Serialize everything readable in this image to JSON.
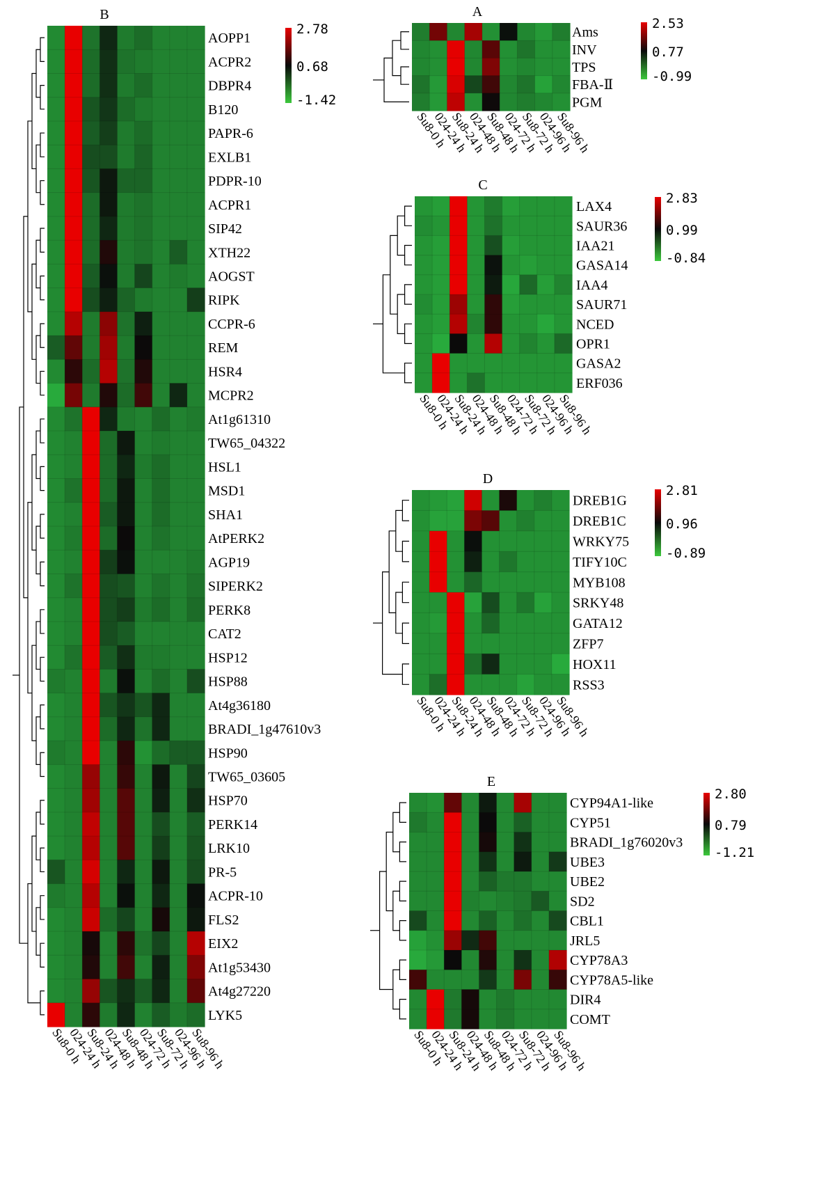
{
  "columns": [
    "Su8-0 h",
    "024-24 h",
    "Su8-24 h",
    "024-48 h",
    "Su8-48 h",
    "024-72 h",
    "Su8-72 h",
    "024-96 h",
    "Su8-96 h"
  ],
  "chart_data": [
    {
      "type": "heatmap",
      "title": "B",
      "legend": {
        "ticks": [
          "2.78",
          "0.68",
          "-1.42"
        ],
        "range": [
          -1.42,
          2.78
        ]
      },
      "rows": [
        "AOPP1",
        "ACPR2",
        "DBPR4",
        "B120",
        "PAPR-6",
        "EXLB1",
        "PDPR-10",
        "ACPR1",
        "SIP42",
        "XTH22",
        "AOGST",
        "RIPK",
        "CCPR-6",
        "REM",
        "HSR4",
        "MCPR2",
        "At1g61310",
        "TW65_04322",
        "HSL1",
        "MSD1",
        "SHA1",
        "AtPERK2",
        "AGP19",
        "SIPERK2",
        "PERK8",
        "CAT2",
        "HSP12",
        "HSP88",
        "At4g36180",
        "BRADI_1g47610v3",
        "HSP90",
        "TW65_03605",
        "HSP70",
        "PERK14",
        "LRK10",
        "PR-5",
        "ACPR-10",
        "FLS2",
        "EIX2",
        "At1g53430",
        "At4g27220",
        "LYK5"
      ],
      "values": [
        [
          -1.0,
          2.78,
          -0.7,
          0.3,
          -0.8,
          -0.6,
          -0.9,
          -0.9,
          -0.9
        ],
        [
          -1.0,
          2.78,
          -0.6,
          0.2,
          -0.7,
          -0.8,
          -0.9,
          -0.9,
          -0.9
        ],
        [
          -1.0,
          2.78,
          -0.6,
          0.2,
          -0.8,
          -0.6,
          -0.9,
          -0.9,
          -0.9
        ],
        [
          -1.0,
          2.78,
          -0.3,
          0.1,
          -0.6,
          -0.8,
          -0.9,
          -0.9,
          -0.9
        ],
        [
          -1.0,
          2.78,
          -0.4,
          0.0,
          -0.8,
          -0.6,
          -0.9,
          -0.9,
          -0.9
        ],
        [
          -1.0,
          2.78,
          -0.2,
          -0.2,
          -0.8,
          -0.5,
          -0.9,
          -0.9,
          -0.9
        ],
        [
          -1.0,
          2.78,
          -0.3,
          0.5,
          -0.5,
          -0.5,
          -0.9,
          -0.9,
          -0.9
        ],
        [
          -1.0,
          2.78,
          -0.6,
          0.5,
          -0.8,
          -0.7,
          -0.9,
          -0.9,
          -0.9
        ],
        [
          -1.0,
          2.78,
          -0.6,
          0.3,
          -0.8,
          -0.7,
          -0.9,
          -0.9,
          -0.9
        ],
        [
          -1.0,
          2.78,
          -0.6,
          0.9,
          -0.8,
          -0.7,
          -0.9,
          -0.4,
          -0.9
        ],
        [
          -1.0,
          2.78,
          -0.4,
          0.6,
          -0.8,
          -0.1,
          -0.9,
          -0.8,
          -0.9
        ],
        [
          -1.0,
          2.78,
          -0.2,
          0.4,
          -0.5,
          -0.8,
          -0.9,
          -0.9,
          0.0
        ],
        [
          -1.0,
          2.3,
          -0.8,
          1.9,
          -0.7,
          0.4,
          -0.9,
          -0.9,
          -0.9
        ],
        [
          -0.4,
          1.5,
          -0.8,
          2.1,
          -0.8,
          0.7,
          -0.9,
          -0.9,
          -0.9
        ],
        [
          -1.0,
          1.0,
          -0.6,
          2.3,
          -0.7,
          0.9,
          -0.9,
          -0.9,
          -0.9
        ],
        [
          -1.42,
          1.7,
          -0.8,
          0.9,
          -0.6,
          1.2,
          -0.9,
          0.3,
          -0.9
        ],
        [
          -1.0,
          -0.7,
          2.78,
          0.3,
          -0.8,
          -0.9,
          -0.6,
          -0.9,
          -0.8
        ],
        [
          -1.0,
          -0.9,
          2.78,
          -0.6,
          0.5,
          -0.9,
          -0.8,
          -0.9,
          -0.9
        ],
        [
          -1.0,
          -0.9,
          2.78,
          -0.6,
          0.3,
          -0.8,
          -0.6,
          -0.9,
          -0.9
        ],
        [
          -1.0,
          -0.7,
          2.78,
          -0.6,
          0.5,
          -0.9,
          -0.6,
          -0.9,
          -0.9
        ],
        [
          -1.0,
          -0.9,
          2.78,
          -0.4,
          0.5,
          -0.9,
          -0.6,
          -0.9,
          -0.9
        ],
        [
          -1.0,
          -0.8,
          2.78,
          -0.6,
          0.7,
          -0.9,
          -0.7,
          -0.9,
          -0.9
        ],
        [
          -1.0,
          -0.9,
          2.78,
          0.0,
          0.6,
          -0.9,
          -0.9,
          -0.9,
          -0.8
        ],
        [
          -1.0,
          -0.7,
          2.78,
          -0.2,
          -0.3,
          -0.9,
          -0.7,
          -0.9,
          -0.7
        ],
        [
          -1.0,
          -0.9,
          2.78,
          -0.2,
          0.0,
          -0.8,
          -0.6,
          -0.9,
          -0.6
        ],
        [
          -1.0,
          -0.9,
          2.78,
          -0.2,
          -0.4,
          -0.9,
          -0.9,
          -0.9,
          -0.9
        ],
        [
          -1.0,
          -0.7,
          2.78,
          -0.4,
          0.2,
          -0.8,
          -0.8,
          -0.9,
          -0.9
        ],
        [
          -0.8,
          -0.9,
          2.78,
          -0.8,
          0.6,
          -0.9,
          -0.6,
          -0.9,
          -0.2
        ],
        [
          -1.0,
          -0.9,
          2.78,
          -0.3,
          0.1,
          -0.3,
          0.3,
          -0.9,
          -0.9
        ],
        [
          -1.0,
          -0.9,
          2.78,
          -0.6,
          0.3,
          -0.7,
          0.3,
          -0.9,
          -0.9
        ],
        [
          -0.8,
          -0.9,
          2.78,
          -0.9,
          1.0,
          -1.1,
          -0.6,
          -0.4,
          -0.4
        ],
        [
          -1.0,
          -0.9,
          2.0,
          -0.9,
          1.1,
          -0.9,
          0.5,
          -0.9,
          -0.1
        ],
        [
          -1.0,
          -0.9,
          2.1,
          -0.9,
          1.4,
          -0.9,
          0.4,
          -0.9,
          0.2
        ],
        [
          -1.0,
          -0.9,
          2.4,
          -0.9,
          1.4,
          -0.9,
          -0.2,
          -0.9,
          -0.4
        ],
        [
          -1.0,
          -0.9,
          2.3,
          -0.9,
          1.4,
          -0.9,
          0.0,
          -0.9,
          -0.3
        ],
        [
          -0.3,
          -0.9,
          2.6,
          -0.9,
          0.3,
          -0.9,
          0.5,
          -0.9,
          -0.2
        ],
        [
          -0.8,
          -0.9,
          2.3,
          -0.9,
          0.6,
          -0.9,
          0.3,
          -0.9,
          0.6
        ],
        [
          -1.0,
          -0.9,
          2.5,
          -0.6,
          -0.1,
          -0.9,
          0.8,
          -0.9,
          0.5
        ],
        [
          -1.0,
          -0.9,
          0.8,
          -0.9,
          1.0,
          -0.7,
          -0.1,
          -0.9,
          2.3
        ],
        [
          -1.0,
          -0.9,
          0.9,
          -0.9,
          1.2,
          -0.9,
          0.4,
          -0.9,
          1.8
        ],
        [
          -1.0,
          -0.9,
          2.0,
          -0.3,
          0.2,
          -0.4,
          0.3,
          -0.9,
          1.5
        ],
        [
          2.78,
          -0.9,
          1.0,
          -0.8,
          0.3,
          -0.9,
          -0.4,
          -0.8,
          -0.6
        ]
      ]
    },
    {
      "type": "heatmap",
      "title": "A",
      "legend": {
        "ticks": [
          "2.53",
          "0.77",
          "-0.99"
        ],
        "range": [
          -0.99,
          2.53
        ]
      },
      "rows": [
        "Ams",
        "INV",
        "TPS",
        "FBA-Ⅱ",
        "PGM"
      ],
      "values": [
        [
          -0.5,
          1.6,
          -0.6,
          2.0,
          -0.7,
          0.7,
          -0.6,
          -0.8,
          -0.5
        ],
        [
          -0.6,
          -0.7,
          2.5,
          -0.6,
          1.4,
          -0.7,
          -0.4,
          -0.7,
          -0.7
        ],
        [
          -0.6,
          -0.7,
          2.53,
          -0.6,
          1.7,
          -0.7,
          -0.6,
          -0.7,
          -0.7
        ],
        [
          -0.4,
          -0.8,
          2.4,
          0.1,
          1.2,
          -0.6,
          -0.4,
          -0.9,
          -0.6
        ],
        [
          -0.5,
          -0.8,
          2.2,
          -0.7,
          0.8,
          -0.6,
          -0.5,
          -0.6,
          -0.7
        ]
      ]
    },
    {
      "type": "heatmap",
      "title": "C",
      "legend": {
        "ticks": [
          "2.83",
          "0.99",
          "-0.84"
        ],
        "range": [
          -0.84,
          2.83
        ]
      },
      "rows": [
        "LAX4",
        "SAUR36",
        "IAA21",
        "GASA14",
        "IAA4",
        "SAUR71",
        "NCED",
        "OPR1",
        "GASA2",
        "ERF036"
      ],
      "values": [
        [
          -0.6,
          -0.7,
          2.83,
          -0.6,
          -0.3,
          -0.7,
          -0.6,
          -0.6,
          -0.6
        ],
        [
          -0.5,
          -0.6,
          2.83,
          -0.6,
          -0.2,
          -0.6,
          -0.6,
          -0.6,
          -0.6
        ],
        [
          -0.6,
          -0.7,
          2.83,
          -0.6,
          0.2,
          -0.7,
          -0.6,
          -0.6,
          -0.6
        ],
        [
          -0.6,
          -0.7,
          2.83,
          -0.6,
          0.9,
          -0.6,
          -0.7,
          -0.6,
          -0.6
        ],
        [
          -0.6,
          -0.7,
          2.83,
          -0.6,
          0.8,
          -0.8,
          -0.1,
          -0.7,
          -0.4
        ],
        [
          -0.5,
          -0.7,
          2.2,
          -0.6,
          1.3,
          -0.7,
          -0.6,
          -0.6,
          -0.6
        ],
        [
          -0.6,
          -0.7,
          2.4,
          -0.4,
          1.3,
          -0.6,
          -0.6,
          -0.8,
          -0.6
        ],
        [
          -0.6,
          -0.84,
          1.0,
          -0.6,
          2.4,
          -0.6,
          -0.4,
          -0.6,
          -0.1
        ],
        [
          -0.6,
          2.83,
          -0.6,
          -0.6,
          -0.6,
          -0.6,
          -0.6,
          -0.6,
          -0.6
        ],
        [
          -0.6,
          2.83,
          -0.6,
          -0.2,
          -0.6,
          -0.6,
          -0.6,
          -0.6,
          -0.6
        ]
      ]
    },
    {
      "type": "heatmap",
      "title": "D",
      "legend": {
        "ticks": [
          "2.81",
          "0.96",
          "-0.89"
        ],
        "range": [
          -0.89,
          2.81
        ]
      },
      "rows": [
        "DREB1G",
        "DREB1C",
        "WRKY75",
        "TIFY10C",
        "MYB108",
        "SRKY48",
        "GATA12",
        "ZFP7",
        "HOX11",
        "RSS3"
      ],
      "values": [
        [
          -0.6,
          -0.7,
          -0.8,
          2.6,
          -0.6,
          1.1,
          -0.6,
          -0.4,
          -0.6
        ],
        [
          -0.6,
          -0.8,
          -0.8,
          1.9,
          1.6,
          -0.6,
          -0.4,
          -0.6,
          -0.6
        ],
        [
          -0.6,
          2.81,
          -0.6,
          0.9,
          -0.6,
          -0.6,
          -0.6,
          -0.6,
          -0.6
        ],
        [
          -0.6,
          2.81,
          -0.6,
          0.7,
          -0.6,
          -0.3,
          -0.6,
          -0.6,
          -0.6
        ],
        [
          -0.6,
          2.81,
          -0.6,
          -0.1,
          -0.6,
          -0.6,
          -0.6,
          -0.6,
          -0.6
        ],
        [
          -0.6,
          -0.6,
          2.81,
          -0.8,
          0.2,
          -0.6,
          -0.3,
          -0.8,
          -0.6
        ],
        [
          -0.6,
          -0.7,
          2.81,
          -0.6,
          -0.1,
          -0.6,
          -0.6,
          -0.6,
          -0.6
        ],
        [
          -0.6,
          -0.6,
          2.81,
          -0.6,
          -0.6,
          -0.6,
          -0.6,
          -0.6,
          -0.6
        ],
        [
          -0.6,
          -0.6,
          2.81,
          -0.2,
          0.6,
          -0.6,
          -0.6,
          -0.6,
          -0.89
        ],
        [
          -0.6,
          -0.2,
          2.81,
          -0.6,
          -0.6,
          -0.6,
          -0.8,
          -0.6,
          -0.6
        ]
      ]
    },
    {
      "type": "heatmap",
      "title": "E",
      "legend": {
        "ticks": [
          "2.80",
          "0.79",
          "-1.21"
        ],
        "range": [
          -1.21,
          2.8
        ]
      },
      "rows": [
        "CYP94A1-like",
        "CYP51",
        "BRADI_1g76020v3",
        "UBE3",
        "UBE2",
        "SD2",
        "CBL1",
        "JRL5",
        "CYP78A3",
        "CYP78A5-like",
        "DIR4",
        "COMT"
      ],
      "values": [
        [
          -0.8,
          -0.9,
          1.6,
          -0.8,
          0.6,
          -0.8,
          2.2,
          -0.8,
          -0.8
        ],
        [
          -0.6,
          -0.8,
          2.8,
          -0.8,
          0.8,
          -0.8,
          -0.3,
          -0.8,
          -0.8
        ],
        [
          -0.8,
          -0.8,
          2.8,
          -0.8,
          0.9,
          -0.8,
          0.3,
          -0.8,
          -0.8
        ],
        [
          -0.8,
          -0.8,
          2.8,
          -0.8,
          0.3,
          -0.8,
          0.6,
          -0.8,
          0.2
        ],
        [
          -0.8,
          -0.8,
          2.8,
          -0.8,
          -0.3,
          -0.6,
          -0.6,
          -0.8,
          -0.8
        ],
        [
          -0.8,
          -0.8,
          2.8,
          -0.7,
          -0.8,
          -0.7,
          -0.6,
          -0.2,
          -0.8
        ],
        [
          0.0,
          -0.8,
          2.8,
          -0.8,
          -0.3,
          -0.8,
          -0.5,
          -0.8,
          0.0
        ],
        [
          -1.1,
          -0.9,
          2.1,
          0.4,
          1.3,
          -0.8,
          -0.8,
          -0.8,
          -0.8
        ],
        [
          -1.2,
          -1.0,
          0.8,
          -0.8,
          1.0,
          -0.8,
          0.3,
          -0.8,
          2.3
        ],
        [
          1.3,
          -0.8,
          -0.8,
          -0.8,
          0.2,
          -0.8,
          1.8,
          -0.8,
          1.2
        ],
        [
          -0.8,
          2.8,
          -0.6,
          0.9,
          -0.8,
          -0.6,
          -0.8,
          -0.8,
          -0.8
        ],
        [
          -0.8,
          2.8,
          -0.6,
          0.9,
          -0.8,
          -0.6,
          -0.8,
          -0.8,
          -0.8
        ]
      ]
    }
  ]
}
